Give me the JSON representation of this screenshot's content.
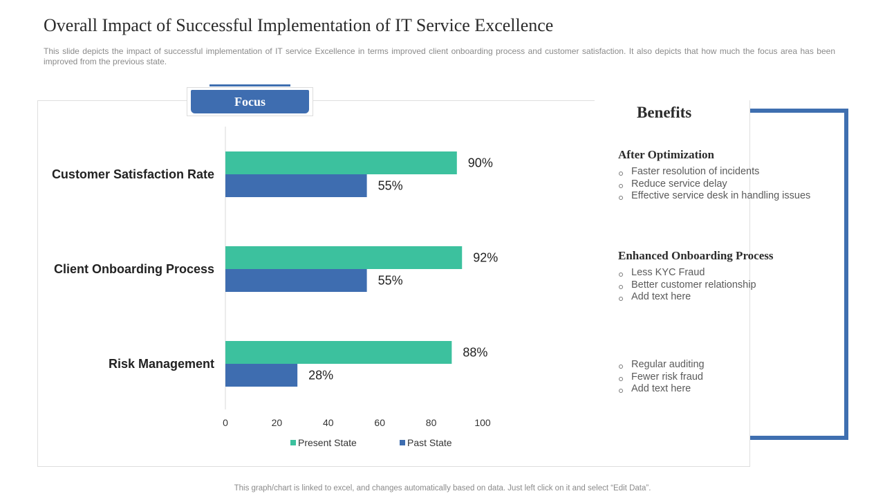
{
  "slide": {
    "title": "Overall Impact of Successful Implementation of IT Service Excellence",
    "subtitle": "This slide depicts the impact of successful implementation of  IT service  Excellence  in terms improved  client onboarding  process and customer satisfaction.  It also depicts that how much the focus area has been improved  from  the previous  state.",
    "footer": "This graph/chart is linked to excel,  and changes automatically based on data. Just left click on it and select “Edit Data”."
  },
  "focus_tab": {
    "label": "Focus"
  },
  "colors": {
    "present": "#3cc19e",
    "past": "#3e6db0",
    "accent": "#3f6fb0"
  },
  "chart_data": {
    "type": "bar",
    "orientation": "horizontal",
    "categories": [
      "Customer Satisfaction Rate",
      "Client Onboarding Process",
      "Risk Management"
    ],
    "series": [
      {
        "name": "Present State",
        "values": [
          90,
          92,
          88
        ],
        "labels": [
          "90%",
          "92%",
          "88%"
        ]
      },
      {
        "name": "Past State",
        "values": [
          55,
          55,
          28
        ],
        "labels": [
          "55%",
          "55%",
          "28%"
        ]
      }
    ],
    "xlim": [
      0,
      100
    ],
    "xticks": [
      0,
      20,
      40,
      60,
      80,
      100
    ],
    "legend": "bottom"
  },
  "benefits": {
    "title": "Benefits",
    "sections": [
      {
        "heading": "After Optimization",
        "items": [
          "Faster resolution of incidents",
          "Reduce service delay",
          "Effective service desk in handling issues"
        ]
      },
      {
        "heading": "Enhanced Onboarding Process",
        "items": [
          "Less KYC Fraud",
          "Better customer relationship",
          "Add text here"
        ]
      },
      {
        "heading": "",
        "items": [
          "Regular auditing",
          "Fewer risk fraud",
          "Add text here"
        ]
      }
    ]
  }
}
